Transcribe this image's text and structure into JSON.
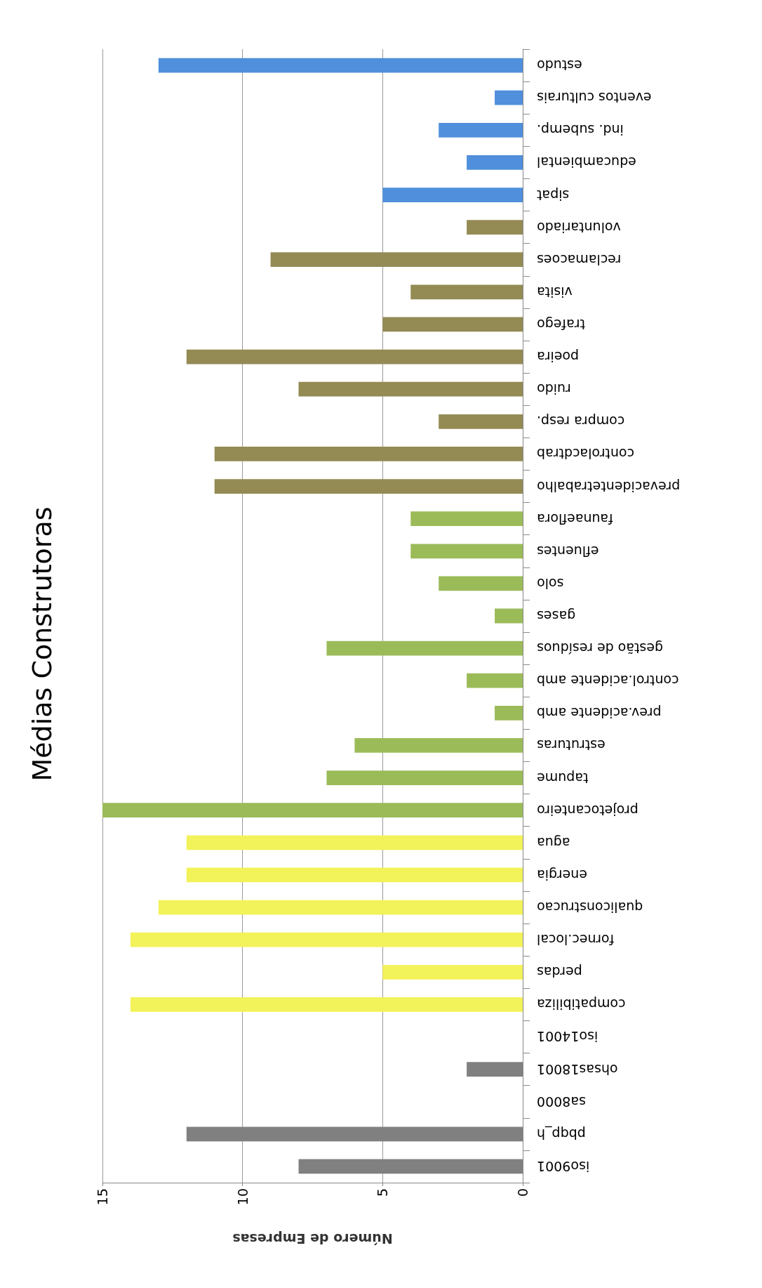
{
  "chart_data": {
    "type": "bar",
    "orientation": "horizontal",
    "title": "Médias Construtoras",
    "xlabel": "Número de Empresas",
    "categories": [
      "estudo",
      "eventos culturais",
      "ind. subemp.",
      "educambiental",
      "sipat",
      "voluntariado",
      "reclamacoes",
      "visita",
      "trafego",
      "poeira",
      "ruido",
      "compra resp.",
      "controlacdtrab",
      "prevacidentetrabalho",
      "faunaeflora",
      "efluentes",
      "solo",
      "gases",
      "gestão de resíduos",
      "control.acidente amb",
      "prev.acidente amb",
      "estruturas",
      "tapume",
      "projetocanteiro",
      "agua",
      "energia",
      "qualiconstrucao",
      "fornec.local",
      "perdas",
      "compatibiliza",
      "iso14001",
      "ohsas18001",
      "sa8000",
      "pbqp_h",
      "iso9001"
    ],
    "values": [
      13,
      1,
      3,
      2,
      5,
      2,
      9,
      4,
      5,
      12,
      8,
      3,
      11,
      11,
      4,
      4,
      3,
      1,
      7,
      2,
      1,
      6,
      7,
      15,
      12,
      12,
      13,
      14,
      5,
      14,
      0,
      2,
      0,
      12,
      8
    ],
    "colors": [
      "#4f8fdb",
      "#4f8fdb",
      "#4f8fdb",
      "#4f8fdb",
      "#4f8fdb",
      "#948a54",
      "#948a54",
      "#948a54",
      "#948a54",
      "#948a54",
      "#948a54",
      "#948a54",
      "#948a54",
      "#948a54",
      "#9bbb59",
      "#9bbb59",
      "#9bbb59",
      "#9bbb59",
      "#9bbb59",
      "#9bbb59",
      "#9bbb59",
      "#9bbb59",
      "#9bbb59",
      "#9bbb59",
      "#f2f25a",
      "#f2f25a",
      "#f2f25a",
      "#f2f25a",
      "#f2f25a",
      "#f2f25a",
      "#808080",
      "#808080",
      "#808080",
      "#808080",
      "#808080"
    ],
    "xlim": [
      15,
      0
    ],
    "xticks": [
      15,
      10,
      5,
      0
    ],
    "grid": true
  }
}
